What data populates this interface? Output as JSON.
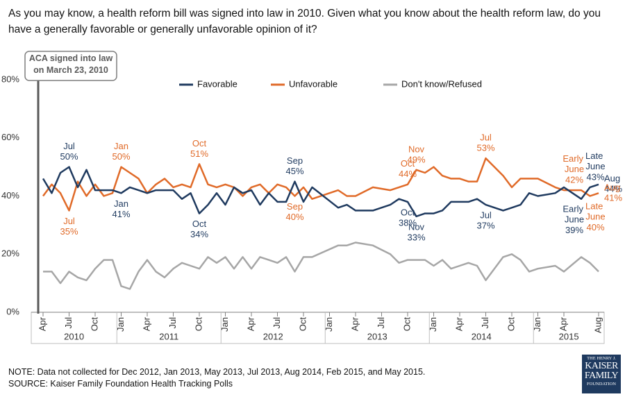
{
  "chart_data": {
    "type": "line",
    "title": "As you may know, a health reform bill was signed into law in 2010. Given what you know about the health reform law, do you have a generally favorable or generally unfavorable opinion of it?",
    "x": [
      "2010-04",
      "2010-05",
      "2010-06",
      "2010-07",
      "2010-08",
      "2010-09",
      "2010-10",
      "2010-11",
      "2010-12",
      "2011-01",
      "2011-02",
      "2011-03",
      "2011-04",
      "2011-05",
      "2011-06",
      "2011-07",
      "2011-08",
      "2011-09",
      "2011-10",
      "2011-11",
      "2011-12",
      "2012-01",
      "2012-02",
      "2012-03",
      "2012-04",
      "2012-05",
      "2012-06",
      "2012-07",
      "2012-08",
      "2012-09",
      "2012-10",
      "2012-11",
      "2013-02",
      "2013-03",
      "2013-04",
      "2013-06",
      "2013-08",
      "2013-09",
      "2013-10",
      "2013-11",
      "2013-12",
      "2014-01",
      "2014-02",
      "2014-03",
      "2014-04",
      "2014-05",
      "2014-06",
      "2014-07",
      "2014-09",
      "2014-10",
      "2014-11",
      "2014-12",
      "2015-01",
      "2015-03",
      "2015-04",
      "2015-06",
      "2015-06",
      "2015-08"
    ],
    "xlim": [
      "2010-04",
      "2015-08"
    ],
    "xticks": [
      {
        "value": "2010-04",
        "label": "Apr"
      },
      {
        "value": "2010-07",
        "label": "Jul"
      },
      {
        "value": "2010-10",
        "label": "Oct"
      },
      {
        "value": "2011-01",
        "label": "Jan"
      },
      {
        "value": "2011-04",
        "label": "Apr"
      },
      {
        "value": "2011-07",
        "label": "Jul"
      },
      {
        "value": "2011-10",
        "label": "Oct"
      },
      {
        "value": "2012-01",
        "label": "Jan"
      },
      {
        "value": "2012-04",
        "label": "Apr"
      },
      {
        "value": "2012-07",
        "label": "Jul"
      },
      {
        "value": "2012-10",
        "label": "Oct"
      },
      {
        "value": "2013-01",
        "label": "Jan"
      },
      {
        "value": "2013-04",
        "label": "Apr"
      },
      {
        "value": "2013-07",
        "label": "Jul"
      },
      {
        "value": "2013-10",
        "label": "Oct"
      },
      {
        "value": "2014-01",
        "label": "Jan"
      },
      {
        "value": "2014-04",
        "label": "Apr"
      },
      {
        "value": "2014-07",
        "label": "Jul"
      },
      {
        "value": "2014-10",
        "label": "Oct"
      },
      {
        "value": "2015-01",
        "label": "Jan"
      },
      {
        "value": "2015-04",
        "label": "Apr"
      },
      {
        "value": "2015-08",
        "label": "Aug"
      }
    ],
    "year_labels": [
      "2010",
      "2011",
      "2012",
      "2013",
      "2014",
      "2015"
    ],
    "ylim": [
      0,
      80
    ],
    "yticks": [
      {
        "value": 0,
        "label": "0%"
      },
      {
        "value": 20,
        "label": "20%"
      },
      {
        "value": 40,
        "label": "40%"
      },
      {
        "value": 60,
        "label": "60%"
      },
      {
        "value": 80,
        "label": "80%"
      }
    ],
    "grid": false,
    "series": [
      {
        "name": "Favorable",
        "color": "#1f3a5f",
        "values": [
          46,
          41,
          48,
          50,
          43,
          49,
          42,
          42,
          42,
          41,
          43,
          42,
          41,
          42,
          42,
          42,
          39,
          41,
          34,
          37,
          41,
          37,
          43,
          41,
          42,
          37,
          41,
          38,
          38,
          45,
          38,
          43,
          36,
          37,
          35,
          35,
          37,
          39,
          38,
          33,
          34,
          34,
          35,
          38,
          38,
          38,
          39,
          37,
          35,
          36,
          37,
          41,
          40,
          41,
          43,
          39,
          43,
          44
        ],
        "value_labels": [
          null,
          null,
          null,
          "50%",
          null,
          null,
          null,
          null,
          null,
          "41%",
          null,
          null,
          null,
          null,
          null,
          null,
          null,
          null,
          "34%",
          null,
          null,
          null,
          null,
          null,
          null,
          null,
          null,
          null,
          null,
          "45%",
          null,
          null,
          null,
          null,
          null,
          null,
          null,
          null,
          "38%",
          "33%",
          null,
          null,
          null,
          null,
          null,
          null,
          null,
          "37%",
          null,
          null,
          null,
          null,
          null,
          null,
          null,
          "39%",
          "43%",
          "44%"
        ],
        "point_labels": [
          null,
          null,
          null,
          "Jul",
          null,
          null,
          null,
          null,
          null,
          "Jan",
          null,
          null,
          null,
          null,
          null,
          null,
          null,
          null,
          "Oct",
          null,
          null,
          null,
          null,
          null,
          null,
          null,
          null,
          null,
          null,
          "Sep",
          null,
          null,
          null,
          null,
          null,
          null,
          null,
          null,
          "Oct",
          "Nov",
          null,
          null,
          null,
          null,
          null,
          null,
          null,
          "Jul",
          null,
          null,
          null,
          null,
          null,
          null,
          null,
          "Early June",
          "Late June",
          "Aug"
        ]
      },
      {
        "name": "Unfavorable",
        "color": "#e06a28",
        "values": [
          40,
          44,
          41,
          35,
          45,
          40,
          44,
          40,
          41,
          50,
          48,
          46,
          41,
          44,
          46,
          43,
          44,
          43,
          51,
          44,
          43,
          44,
          43,
          40,
          43,
          44,
          41,
          44,
          43,
          40,
          43,
          39,
          42,
          40,
          40,
          43,
          42,
          43,
          44,
          49,
          48,
          50,
          47,
          46,
          46,
          45,
          45,
          53,
          47,
          43,
          46,
          46,
          46,
          43,
          42,
          42,
          40,
          41
        ],
        "value_labels": [
          null,
          null,
          null,
          "35%",
          null,
          null,
          null,
          null,
          null,
          "50%",
          null,
          null,
          null,
          null,
          null,
          null,
          null,
          null,
          "51%",
          null,
          null,
          null,
          null,
          null,
          null,
          null,
          null,
          null,
          null,
          "40%",
          null,
          null,
          null,
          null,
          null,
          null,
          null,
          null,
          "44%",
          "49%",
          null,
          null,
          null,
          null,
          null,
          null,
          null,
          "53%",
          null,
          null,
          null,
          null,
          null,
          null,
          null,
          "42%",
          "40%",
          "41%"
        ],
        "point_labels": [
          null,
          null,
          null,
          "Jul",
          null,
          null,
          null,
          null,
          null,
          "Jan",
          null,
          null,
          null,
          null,
          null,
          null,
          null,
          null,
          "Oct",
          null,
          null,
          null,
          null,
          null,
          null,
          null,
          null,
          null,
          null,
          "Sep",
          null,
          null,
          null,
          null,
          null,
          null,
          null,
          null,
          "Oct",
          "Nov",
          null,
          null,
          null,
          null,
          null,
          null,
          null,
          "Jul",
          null,
          null,
          null,
          null,
          null,
          null,
          null,
          "Early June",
          "Late June",
          "Aug"
        ]
      },
      {
        "name": "Don't know/Refused",
        "color": "#a6a6a6",
        "values": [
          14,
          14,
          10,
          14,
          12,
          11,
          15,
          18,
          18,
          9,
          8,
          14,
          18,
          14,
          12,
          15,
          17,
          16,
          15,
          19,
          17,
          19,
          15,
          19,
          15,
          19,
          18,
          17,
          19,
          14,
          19,
          19,
          23,
          23,
          24,
          23,
          20,
          17,
          18,
          18,
          18,
          16,
          18,
          15,
          16,
          17,
          16,
          11,
          19,
          20,
          18,
          14,
          15,
          16,
          14,
          19,
          17,
          14
        ]
      }
    ],
    "annotation": "ACA signed into law on March 23, 2010",
    "note": "NOTE: Data not collected for Dec 2012, Jan 2013, May 2013, Jul 2013, Aug 2014, Feb 2015, and May 2015.",
    "source": "SOURCE: Kaiser Family Foundation Health Tracking Polls",
    "logo": [
      "THE HENRY J.",
      "KAISER",
      "FAMILY",
      "FOUNDATION"
    ]
  }
}
